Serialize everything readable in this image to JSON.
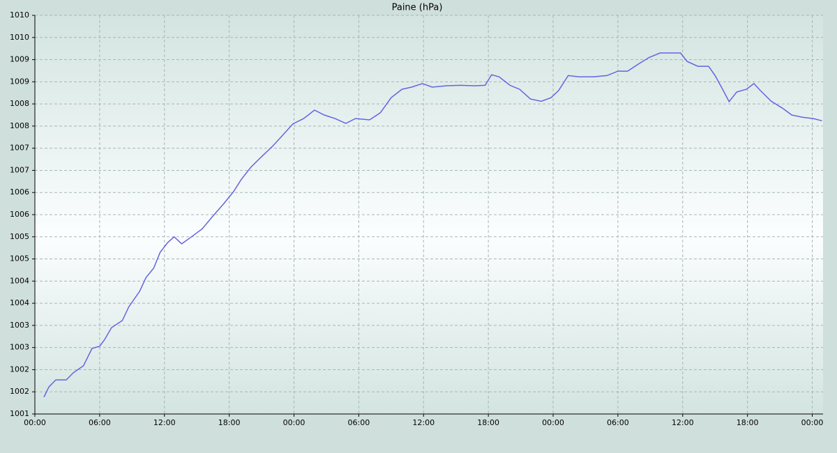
{
  "chart_data": {
    "type": "line",
    "title": "Paine (hPa)",
    "xlim": [
      0,
      73
    ],
    "xticks": [
      {
        "value": 0,
        "label": "00:00"
      },
      {
        "value": 6,
        "label": "06:00"
      },
      {
        "value": 12,
        "label": "12:00"
      },
      {
        "value": 18,
        "label": "18:00"
      },
      {
        "value": 24,
        "label": "00:00"
      },
      {
        "value": 30,
        "label": "06:00"
      },
      {
        "value": 36,
        "label": "12:00"
      },
      {
        "value": 42,
        "label": "18:00"
      },
      {
        "value": 48,
        "label": "00:00"
      },
      {
        "value": 54,
        "label": "06:00"
      },
      {
        "value": 60,
        "label": "12:00"
      },
      {
        "value": 66,
        "label": "18:00"
      },
      {
        "value": 72,
        "label": "00:00"
      }
    ],
    "ylim": [
      1001,
      1010
    ],
    "yticks": [
      1001,
      {
        "value": 1001.5,
        "label": "1002"
      },
      1002,
      {
        "value": 1002.5,
        "label": "1003"
      },
      1003,
      {
        "value": 1003.5,
        "label": "1004"
      },
      1004,
      {
        "value": 1004.5,
        "label": "1005"
      },
      1005,
      {
        "value": 1005.5,
        "label": "1006"
      },
      1006,
      {
        "value": 1006.5,
        "label": "1007"
      },
      1007,
      {
        "value": 1007.5,
        "label": "1008"
      },
      1008,
      {
        "value": 1008.5,
        "label": "1009"
      },
      1009,
      {
        "value": 1009.5,
        "label": "1010"
      },
      1010
    ],
    "grid": true,
    "color": "#6464e0",
    "x": [
      0.84,
      1.3,
      1.94,
      2.9,
      3.56,
      4.5,
      5.3,
      6.0,
      6.46,
      7.1,
      8.1,
      8.7,
      9.7,
      10.3,
      11.0,
      11.6,
      12.3,
      12.9,
      13.6,
      14.5,
      15.5,
      16.5,
      17.5,
      18.4,
      19.1,
      20.0,
      21.0,
      22.0,
      22.9,
      23.9,
      24.9,
      25.9,
      26.8,
      27.8,
      28.8,
      29.7,
      31.0,
      32.0,
      33.0,
      34.0,
      34.9,
      35.9,
      36.8,
      38.1,
      39.4,
      40.7,
      41.7,
      42.3,
      43.0,
      44.0,
      44.9,
      45.9,
      46.9,
      47.8,
      48.5,
      49.4,
      50.4,
      51.7,
      53.0,
      54.0,
      54.9,
      55.9,
      56.9,
      57.9,
      58.8,
      59.8,
      60.4,
      61.4,
      62.4,
      63.0,
      63.7,
      64.3,
      65.0,
      65.9,
      66.6,
      67.2,
      68.2,
      69.2,
      70.1,
      71.1,
      72.1,
      72.9
    ],
    "values": [
      1001.38,
      1001.61,
      1001.77,
      1001.77,
      1001.93,
      1002.09,
      1002.48,
      1002.53,
      1002.68,
      1002.95,
      1003.11,
      1003.42,
      1003.77,
      1004.08,
      1004.29,
      1004.65,
      1004.87,
      1005.0,
      1004.84,
      1005.0,
      1005.18,
      1005.47,
      1005.75,
      1006.02,
      1006.29,
      1006.57,
      1006.81,
      1007.04,
      1007.28,
      1007.55,
      1007.67,
      1007.86,
      1007.75,
      1007.67,
      1007.56,
      1007.67,
      1007.64,
      1007.8,
      1008.14,
      1008.33,
      1008.38,
      1008.46,
      1008.38,
      1008.41,
      1008.42,
      1008.41,
      1008.42,
      1008.66,
      1008.61,
      1008.42,
      1008.33,
      1008.11,
      1008.06,
      1008.14,
      1008.3,
      1008.64,
      1008.61,
      1008.61,
      1008.64,
      1008.74,
      1008.74,
      1008.9,
      1009.05,
      1009.15,
      1009.15,
      1009.15,
      1008.96,
      1008.85,
      1008.85,
      1008.64,
      1008.33,
      1008.05,
      1008.27,
      1008.33,
      1008.46,
      1008.3,
      1008.06,
      1007.91,
      1007.75,
      1007.7,
      1007.67,
      1007.62
    ]
  }
}
